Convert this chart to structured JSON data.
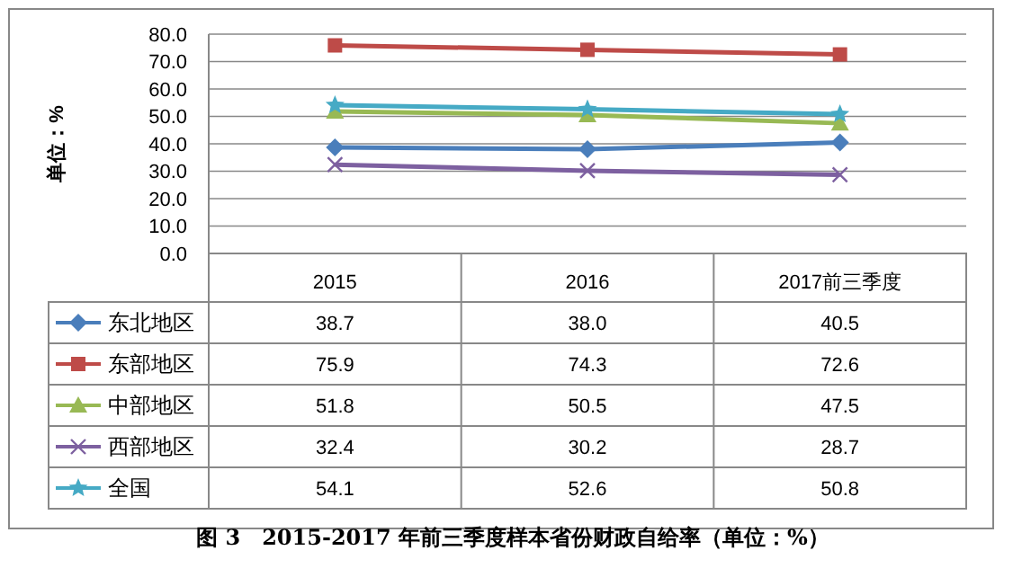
{
  "chart_data": {
    "type": "line",
    "title": "图 3　2015-2017 年前三季度样本省份财政自给率（单位：%）",
    "ylabel": "单位：%",
    "categories": [
      "2015",
      "2016",
      "2017前三季度"
    ],
    "series": [
      {
        "name": "东北地区",
        "color": "#4a7ebb",
        "marker": "diamond",
        "values": [
          38.7,
          38.0,
          40.5
        ],
        "value_labels": [
          "38.7",
          "38.0",
          "40.5"
        ]
      },
      {
        "name": "东部地区",
        "color": "#be4b48",
        "marker": "square",
        "values": [
          75.9,
          74.3,
          72.6
        ],
        "value_labels": [
          "75.9",
          "74.3",
          "72.6"
        ]
      },
      {
        "name": "中部地区",
        "color": "#98b954",
        "marker": "triangle",
        "values": [
          51.8,
          50.5,
          47.5
        ],
        "value_labels": [
          "51.8",
          "50.5",
          "47.5"
        ]
      },
      {
        "name": "西部地区",
        "color": "#7d60a0",
        "marker": "cross",
        "values": [
          32.4,
          30.2,
          28.7
        ],
        "value_labels": [
          "32.4",
          "30.2",
          "28.7"
        ]
      },
      {
        "name": "全国",
        "color": "#46aac5",
        "marker": "star",
        "values": [
          54.1,
          52.6,
          50.8
        ],
        "value_labels": [
          "54.1",
          "52.6",
          "50.8"
        ]
      }
    ],
    "ylim": [
      0,
      80
    ],
    "yticks": [
      {
        "value": 0,
        "label": "0.0"
      },
      {
        "value": 10,
        "label": "10.0"
      },
      {
        "value": 20,
        "label": "20.0"
      },
      {
        "value": 30,
        "label": "30.0"
      },
      {
        "value": 40,
        "label": "40.0"
      },
      {
        "value": 50,
        "label": "50.0"
      },
      {
        "value": 60,
        "label": "60.0"
      },
      {
        "value": 70,
        "label": "70.0"
      },
      {
        "value": 80,
        "label": "80.0"
      }
    ],
    "grid": "y",
    "legend": "left",
    "line_style": "solid"
  }
}
